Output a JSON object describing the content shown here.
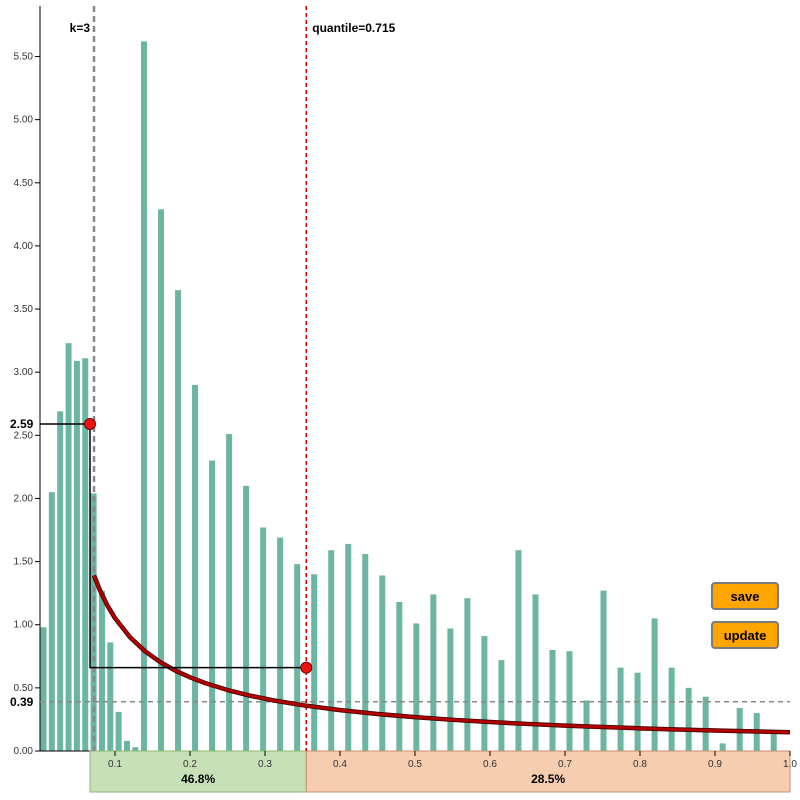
{
  "chart_data": {
    "type": "bar",
    "x_ticks": [
      "0.1",
      "0.2",
      "0.3",
      "0.4",
      "0.5",
      "0.6",
      "0.7",
      "0.8",
      "0.9",
      "1.0"
    ],
    "y_ticks": [
      "0.00",
      "0.50",
      "1.00",
      "1.50",
      "2.00",
      "2.50",
      "3.00",
      "3.50",
      "4.00",
      "4.50",
      "5.00",
      "5.50"
    ],
    "ylim": [
      0,
      5.9
    ],
    "xlim": [
      0,
      1.0
    ],
    "grid": false,
    "series": [
      {
        "values": [
          0.98,
          2.05,
          2.69,
          3.23,
          3.09,
          3.11,
          2.04,
          1.27,
          0.86,
          0.31,
          0.08,
          0.03
        ]
      },
      {
        "values": [
          5.62,
          4.29,
          3.65,
          2.9,
          2.3,
          2.51,
          2.1,
          1.77,
          1.69,
          1.48,
          1.4,
          1.59,
          1.64,
          1.56,
          1.39,
          1.18,
          1.01,
          1.24,
          0.97,
          1.21,
          0.91,
          0.72,
          1.59,
          1.24,
          0.8,
          0.79,
          0.4,
          1.27,
          0.66,
          0.62,
          1.05,
          0.66,
          0.5,
          0.43,
          0.06,
          0.34,
          0.3,
          0.14
        ]
      }
    ],
    "decay_curve_x": [
      0.072,
      0.08,
      0.09,
      0.1,
      0.12,
      0.14,
      0.16,
      0.18,
      0.2,
      0.22,
      0.25,
      0.28,
      0.31,
      0.35,
      0.4,
      0.45,
      0.5,
      0.55,
      0.6,
      0.65,
      0.7,
      0.75,
      0.8,
      0.85,
      0.9,
      0.95,
      1.0
    ],
    "annotations": {
      "k_line_label": "k=3",
      "quantile_label": "quantile=0.715",
      "k_x": 0.072,
      "quantile_x": 0.355,
      "point_high_value": "2.59",
      "point_high_x": 0.072,
      "point_low_y": 0.66,
      "baseline_value": "0.39",
      "segment_left_pct": "46.8%",
      "segment_right_pct": "28.5%"
    }
  },
  "colors": {
    "bar": "#6bb5a2",
    "curve": "#b00000",
    "curve_outline": "#3a0000",
    "quantile_line": "#cc0000",
    "k_line": "#888888",
    "point": "#ee1111",
    "segment_left_fill": "#c7e0b8",
    "segment_left_stroke": "#8bb87a",
    "segment_right_fill": "#f7cdb0",
    "segment_right_stroke": "#c49070",
    "button": "#ffa500"
  },
  "buttons": {
    "save_label": "save",
    "update_label": "update"
  }
}
